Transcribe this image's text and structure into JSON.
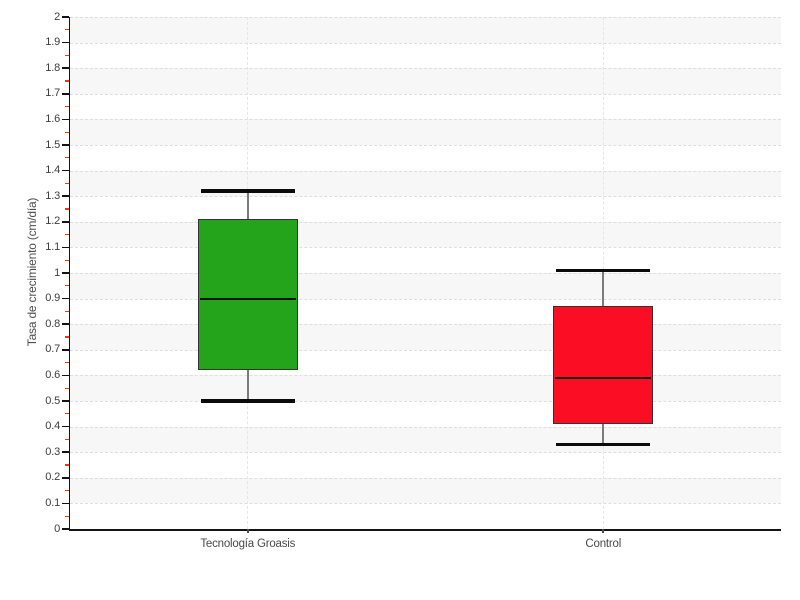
{
  "page": {
    "background": "#ffffff"
  },
  "chart_data": {
    "type": "boxplot",
    "title": "",
    "ylabel": "Tasa de crecimiento (cm/día)",
    "xlabel": "",
    "categories": [
      "Tecnología Groasis",
      "Control"
    ],
    "series": [
      {
        "name": "Tecnología Groasis",
        "min": 0.5,
        "q1": 0.62,
        "median": 0.9,
        "q3": 1.21,
        "max": 1.32,
        "fill_color": "#24a41a"
      },
      {
        "name": "Control",
        "min": 0.33,
        "q1": 0.41,
        "median": 0.59,
        "q3": 0.87,
        "max": 1.01,
        "fill_color": "#fb0d24"
      }
    ],
    "ylim": [
      0,
      2
    ],
    "ytick_step": 0.1,
    "ytick_minor_step": 0.05,
    "ytick_labels": [
      "0",
      "0.1",
      "0.2",
      "0.3",
      "0.4",
      "0.5",
      "0.6",
      "0.7",
      "0.8",
      "0.9",
      "1",
      "1.1",
      "1.2",
      "1.3",
      "1.4",
      "1.5",
      "1.6",
      "1.7",
      "1.8",
      "1.9",
      "2"
    ],
    "legend_position": "none",
    "grid": {
      "horizontal_dashed_every": 0.1,
      "shaded_bands_on_odd_tenth_intervals": true,
      "vertical_dashed_at_category_centers": true
    },
    "colors": {
      "band_fill": "#f7f7f7",
      "h_gridline": "#dedede",
      "v_gridline": "#e6e6e6",
      "axis": "#141414",
      "major_tick": "#141414",
      "minor_tick": "#ff3300",
      "tick_label": "#3d3d3d",
      "category_label": "#4a4a4a",
      "box_border": "#333333",
      "median_line": "#111111",
      "whisker_stem": "#7b7b7b",
      "whisker_cap": "#0b0b0b"
    }
  }
}
